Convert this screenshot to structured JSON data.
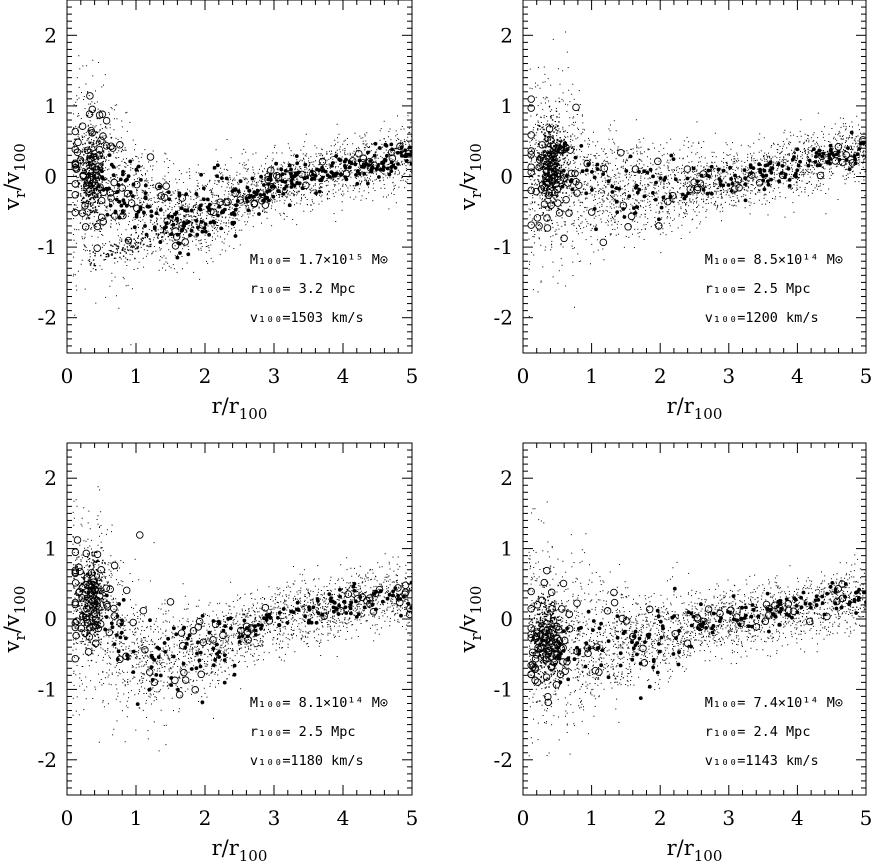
{
  "chart_data": [
    {
      "type": "scatter",
      "panel": "top-left",
      "xlabel": "r/r_100",
      "ylabel": "v_r/v_100",
      "xlim": [
        0,
        5
      ],
      "ylim": [
        -2.5,
        2.5
      ],
      "xticks": [
        "0",
        "1",
        "2",
        "3",
        "4",
        "5"
      ],
      "yticks": [
        "2",
        "1",
        "0",
        "-1",
        "-2"
      ],
      "annotations": {
        "mass": "M₁₀₀= 1.7×10¹⁵ M⊙",
        "radius": "r₁₀₀= 3.2 Mpc",
        "velocity": "v₁₀₀=1503 km/s"
      },
      "trend": [
        [
          0.15,
          0.0
        ],
        [
          0.4,
          0.0
        ],
        [
          0.8,
          -0.2
        ],
        [
          1.2,
          -0.45
        ],
        [
          1.6,
          -0.6
        ],
        [
          2.0,
          -0.55
        ],
        [
          2.5,
          -0.3
        ],
        [
          3.0,
          -0.1
        ],
        [
          3.5,
          0.0
        ],
        [
          4.0,
          0.1
        ],
        [
          4.5,
          0.2
        ],
        [
          5.0,
          0.3
        ]
      ],
      "clump": {
        "x": 0.35,
        "y": 0.0
      },
      "infall_branch": true
    },
    {
      "type": "scatter",
      "panel": "top-right",
      "xlabel": "r/r_100",
      "ylabel": "v_r/v_100",
      "xlim": [
        0,
        5
      ],
      "ylim": [
        -2.5,
        2.5
      ],
      "xticks": [
        "0",
        "1",
        "2",
        "3",
        "4",
        "5"
      ],
      "yticks": [
        "2",
        "1",
        "0",
        "-1",
        "-2"
      ],
      "annotations": {
        "mass": "M₁₀₀= 8.5×10¹⁴ M⊙",
        "radius": "r₁₀₀= 2.5 Mpc",
        "velocity": "v₁₀₀=1200 km/s"
      },
      "trend": [
        [
          0.15,
          0.0
        ],
        [
          0.5,
          0.1
        ],
        [
          0.8,
          -0.05
        ],
        [
          1.2,
          -0.15
        ],
        [
          1.6,
          -0.2
        ],
        [
          2.0,
          -0.2
        ],
        [
          2.5,
          -0.1
        ],
        [
          3.0,
          -0.05
        ],
        [
          3.5,
          0.05
        ],
        [
          4.0,
          0.15
        ],
        [
          4.5,
          0.3
        ],
        [
          5.0,
          0.4
        ]
      ],
      "clump": {
        "x": 0.4,
        "y": 0.2
      },
      "infall_branch": false
    },
    {
      "type": "scatter",
      "panel": "bottom-left",
      "xlabel": "r/r_100",
      "ylabel": "v_r/v_100",
      "xlim": [
        0,
        5
      ],
      "ylim": [
        -2.5,
        2.5
      ],
      "xticks": [
        "0",
        "1",
        "2",
        "3",
        "4",
        "5"
      ],
      "yticks": [
        "2",
        "1",
        "0",
        "-1",
        "-2"
      ],
      "annotations": {
        "mass": "M₁₀₀= 8.1×10¹⁴ M⊙",
        "radius": "r₁₀₀= 2.5 Mpc",
        "velocity": "v₁₀₀=1180 km/s"
      },
      "trend": [
        [
          0.15,
          0.2
        ],
        [
          0.5,
          0.2
        ],
        [
          0.8,
          -0.3
        ],
        [
          1.2,
          -0.6
        ],
        [
          1.6,
          -0.5
        ],
        [
          2.0,
          -0.4
        ],
        [
          2.5,
          -0.2
        ],
        [
          3.0,
          0.0
        ],
        [
          3.5,
          0.1
        ],
        [
          4.0,
          0.2
        ],
        [
          4.5,
          0.3
        ],
        [
          5.0,
          0.3
        ]
      ],
      "clump": {
        "x": 0.35,
        "y": 0.3
      },
      "infall_branch": false
    },
    {
      "type": "scatter",
      "panel": "bottom-right",
      "xlabel": "r/r_100",
      "ylabel": "v_r/v_100",
      "xlim": [
        0,
        5
      ],
      "ylim": [
        -2.5,
        2.5
      ],
      "xticks": [
        "0",
        "1",
        "2",
        "3",
        "4",
        "5"
      ],
      "yticks": [
        "2",
        "1",
        "0",
        "-1",
        "-2"
      ],
      "annotations": {
        "mass": "M₁₀₀= 7.4×10¹⁴ M⊙",
        "radius": "r₁₀₀= 2.4 Mpc",
        "velocity": "v₁₀₀=1143 km/s"
      },
      "trend": [
        [
          0.15,
          -0.2
        ],
        [
          0.5,
          -0.3
        ],
        [
          0.8,
          -0.35
        ],
        [
          1.2,
          -0.35
        ],
        [
          1.6,
          -0.3
        ],
        [
          2.0,
          -0.25
        ],
        [
          2.5,
          -0.1
        ],
        [
          3.0,
          0.0
        ],
        [
          3.5,
          0.05
        ],
        [
          4.0,
          0.15
        ],
        [
          4.5,
          0.25
        ],
        [
          5.0,
          0.3
        ]
      ],
      "clump": {
        "x": 0.35,
        "y": -0.3
      },
      "infall_branch": false
    }
  ]
}
